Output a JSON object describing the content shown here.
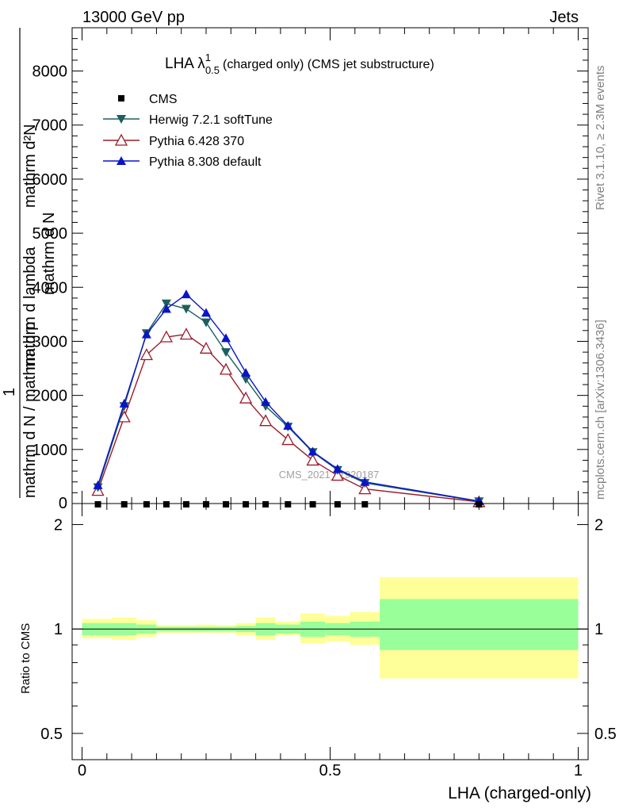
{
  "header": {
    "left": "13000 GeV pp",
    "right": "Jets"
  },
  "side": {
    "rivet": "Rivet 3.1.10, ≥ 2.3M events",
    "mcplots": "mcplots.cern.ch [arXiv:1306.3436]"
  },
  "watermark": "CMS_2021_I1920187",
  "colors": {
    "herwig": "#1d5e5e",
    "pythia6": "#9b1b2a",
    "pythia8": "#0a14c8",
    "band_inner": "#99ff99",
    "band_outer": "#ffff99"
  },
  "chart_data": [
    {
      "type": "line",
      "title": "LHA λ¹₀.₅ (charged only) (CMS jet substructure)",
      "title_main": "LHA λ",
      "title_sup": "1",
      "title_sub": "0.5",
      "title_rest": "(charged only) (CMS jet substructure)",
      "ylabel_parts": [
        "1",
        "mathrm d N / mathrm d p",
        "mathrm d N / mathrm d p",
        "mathrm d N",
        "mathrm d p",
        "mathrm d lambda"
      ],
      "ylabel_numerator": "mathrm d²N",
      "ylabel_numerator2": "mathrm d p",
      "ylabel_denominator": "mathrm d N / mathrm d p",
      "ylabel_inner": "mathrm d p",
      "ylabel_left": "1",
      "ylabel_mid": "mathrm d N",
      "ylim": [
        0,
        8800
      ],
      "xlim": [
        -0.02,
        1.02
      ],
      "yticks": [
        1000,
        2000,
        3000,
        4000,
        5000,
        6000,
        7000,
        8000
      ],
      "ytick_labels": [
        "1000",
        "2000",
        "3000",
        "4000",
        "5000",
        "6000",
        "7000",
        "8000"
      ],
      "series": [
        {
          "name": "CMS",
          "x": [
            0.032,
            0.085,
            0.13,
            0.17,
            0.21,
            0.25,
            0.29,
            0.33,
            0.37,
            0.415,
            0.465,
            0.515,
            0.57,
            0.8
          ],
          "y": [
            20,
            20,
            20,
            20,
            20,
            20,
            20,
            20,
            20,
            20,
            20,
            20,
            20,
            20
          ]
        },
        {
          "name": "Herwig 7.2.1 softTune",
          "x": [
            0.032,
            0.085,
            0.13,
            0.17,
            0.21,
            0.25,
            0.29,
            0.33,
            0.37,
            0.415,
            0.465,
            0.515,
            0.57,
            0.8
          ],
          "y": [
            300,
            1800,
            3150,
            3700,
            3600,
            3350,
            2800,
            2300,
            1800,
            1420,
            950,
            620,
            380,
            40
          ]
        },
        {
          "name": "Pythia 6.428 370",
          "x": [
            0.032,
            0.085,
            0.13,
            0.17,
            0.21,
            0.25,
            0.29,
            0.33,
            0.37,
            0.415,
            0.465,
            0.515,
            0.57,
            0.8
          ],
          "y": [
            240,
            1600,
            2750,
            3080,
            3130,
            2870,
            2480,
            1950,
            1530,
            1180,
            800,
            520,
            270,
            30
          ]
        },
        {
          "name": "Pythia 8.308 default",
          "x": [
            0.032,
            0.085,
            0.13,
            0.17,
            0.21,
            0.25,
            0.29,
            0.33,
            0.37,
            0.415,
            0.465,
            0.515,
            0.57,
            0.8
          ],
          "y": [
            340,
            1850,
            3130,
            3600,
            3870,
            3530,
            3060,
            2420,
            1880,
            1440,
            960,
            640,
            400,
            45
          ]
        }
      ]
    },
    {
      "type": "area",
      "ylabel": "Ratio to CMS",
      "xlabel": "LHA (charged-only)",
      "ylim": [
        0.42,
        2.3
      ],
      "xlim": [
        -0.02,
        1.02
      ],
      "yticks": [
        0.5,
        1,
        2
      ],
      "ytick_labels": [
        "0.5",
        "1",
        "2"
      ],
      "xticks": [
        0,
        0.5,
        1
      ],
      "xtick_labels": [
        "0",
        "0.5",
        "1"
      ],
      "bins": [
        {
          "lo": 0.0,
          "hi": 0.06,
          "inner": [
            0.96,
            1.04
          ],
          "outer": [
            0.94,
            1.07
          ]
        },
        {
          "lo": 0.06,
          "hi": 0.11,
          "inner": [
            0.96,
            1.04
          ],
          "outer": [
            0.93,
            1.08
          ]
        },
        {
          "lo": 0.11,
          "hi": 0.15,
          "inner": [
            0.97,
            1.03
          ],
          "outer": [
            0.95,
            1.06
          ]
        },
        {
          "lo": 0.15,
          "hi": 0.19,
          "inner": [
            0.985,
            1.015
          ],
          "outer": [
            0.975,
            1.025
          ]
        },
        {
          "lo": 0.19,
          "hi": 0.23,
          "inner": [
            0.985,
            1.015
          ],
          "outer": [
            0.975,
            1.025
          ]
        },
        {
          "lo": 0.23,
          "hi": 0.27,
          "inner": [
            0.985,
            1.015
          ],
          "outer": [
            0.975,
            1.03
          ]
        },
        {
          "lo": 0.27,
          "hi": 0.31,
          "inner": [
            0.985,
            1.015
          ],
          "outer": [
            0.975,
            1.025
          ]
        },
        {
          "lo": 0.31,
          "hi": 0.35,
          "inner": [
            0.98,
            1.02
          ],
          "outer": [
            0.96,
            1.04
          ]
        },
        {
          "lo": 0.35,
          "hi": 0.39,
          "inner": [
            0.96,
            1.04
          ],
          "outer": [
            0.93,
            1.08
          ]
        },
        {
          "lo": 0.39,
          "hi": 0.44,
          "inner": [
            0.97,
            1.03
          ],
          "outer": [
            0.96,
            1.05
          ]
        },
        {
          "lo": 0.44,
          "hi": 0.49,
          "inner": [
            0.95,
            1.05
          ],
          "outer": [
            0.91,
            1.11
          ]
        },
        {
          "lo": 0.49,
          "hi": 0.54,
          "inner": [
            0.96,
            1.04
          ],
          "outer": [
            0.92,
            1.09
          ]
        },
        {
          "lo": 0.54,
          "hi": 0.6,
          "inner": [
            0.95,
            1.05
          ],
          "outer": [
            0.9,
            1.12
          ]
        },
        {
          "lo": 0.6,
          "hi": 1.0,
          "inner": [
            0.87,
            1.22
          ],
          "outer": [
            0.72,
            1.41
          ]
        }
      ]
    }
  ]
}
